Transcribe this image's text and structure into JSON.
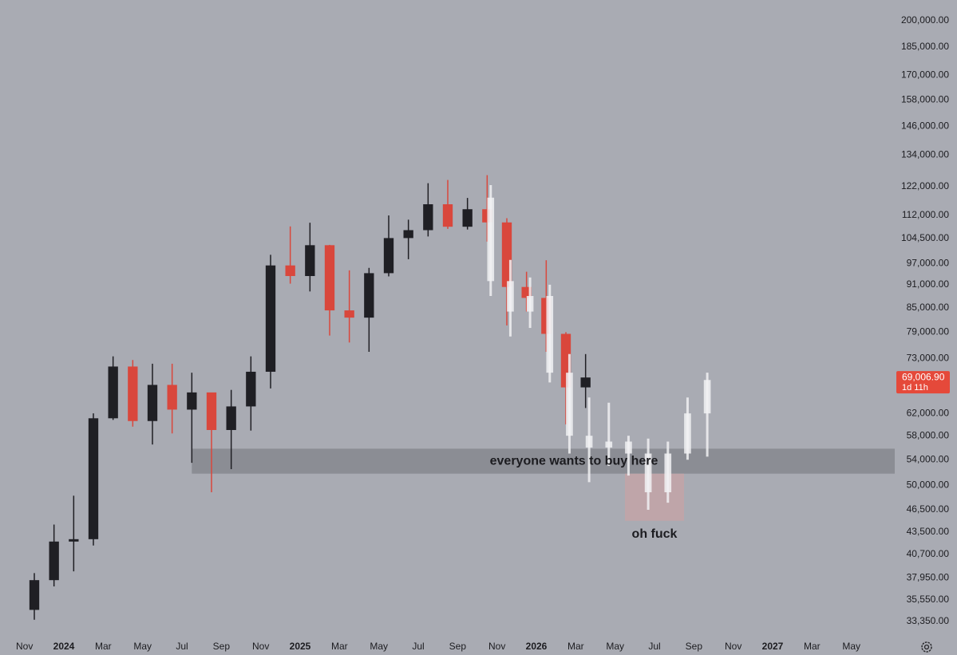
{
  "chart_data": {
    "type": "candlestick",
    "log_scale": true,
    "background": "#a9abb3",
    "ylim": [
      31700,
      212800
    ],
    "yticks": [
      {
        "value": 200000,
        "label": "200,000.00"
      },
      {
        "value": 185000,
        "label": "185,000.00"
      },
      {
        "value": 170000,
        "label": "170,000.00"
      },
      {
        "value": 158000,
        "label": "158,000.00"
      },
      {
        "value": 146000,
        "label": "146,000.00"
      },
      {
        "value": 134000,
        "label": "134,000.00"
      },
      {
        "value": 122000,
        "label": "122,000.00"
      },
      {
        "value": 112000,
        "label": "112,000.00"
      },
      {
        "value": 104500,
        "label": "104,500.00"
      },
      {
        "value": 97000,
        "label": "97,000.00"
      },
      {
        "value": 91000,
        "label": "91,000.00"
      },
      {
        "value": 85000,
        "label": "85,000.00"
      },
      {
        "value": 79000,
        "label": "79,000.00"
      },
      {
        "value": 73000,
        "label": "73,000.00"
      },
      {
        "value": 62000,
        "label": "62,000.00"
      },
      {
        "value": 58000,
        "label": "58,000.00"
      },
      {
        "value": 54000,
        "label": "54,000.00"
      },
      {
        "value": 50000,
        "label": "50,000.00"
      },
      {
        "value": 46500,
        "label": "46,500.00"
      },
      {
        "value": 43500,
        "label": "43,500.00"
      },
      {
        "value": 40700,
        "label": "40,700.00"
      },
      {
        "value": 37950,
        "label": "37,950.00"
      },
      {
        "value": 35550,
        "label": "35,550.00"
      },
      {
        "value": 33350,
        "label": "33,350.00"
      }
    ],
    "xlim": [
      "2023-10",
      "2027-07"
    ],
    "xticks": [
      {
        "value": "2023-11",
        "label": "Nov"
      },
      {
        "value": "2024-01",
        "label": "2024"
      },
      {
        "value": "2024-03",
        "label": "Mar"
      },
      {
        "value": "2024-05",
        "label": "May"
      },
      {
        "value": "2024-07",
        "label": "Jul"
      },
      {
        "value": "2024-09",
        "label": "Sep"
      },
      {
        "value": "2024-11",
        "label": "Nov"
      },
      {
        "value": "2025-01",
        "label": "2025"
      },
      {
        "value": "2025-03",
        "label": "Mar"
      },
      {
        "value": "2025-05",
        "label": "May"
      },
      {
        "value": "2025-07",
        "label": "Jul"
      },
      {
        "value": "2025-09",
        "label": "Sep"
      },
      {
        "value": "2025-11",
        "label": "Nov"
      },
      {
        "value": "2026-01",
        "label": "2026"
      },
      {
        "value": "2026-03",
        "label": "Mar"
      },
      {
        "value": "2026-05",
        "label": "May"
      },
      {
        "value": "2026-07",
        "label": "Jul"
      },
      {
        "value": "2026-09",
        "label": "Sep"
      },
      {
        "value": "2026-11",
        "label": "Nov"
      },
      {
        "value": "2027-01",
        "label": "2027"
      },
      {
        "value": "2027-03",
        "label": "Mar"
      },
      {
        "value": "2027-05",
        "label": "May"
      }
    ],
    "candles": {
      "up_color": "#1f1f24",
      "down_color": "#d9473c",
      "x": [
        "2023-11",
        "2023-12",
        "2024-01",
        "2024-02",
        "2024-03",
        "2024-04",
        "2024-05",
        "2024-06",
        "2024-07",
        "2024-08",
        "2024-09",
        "2024-10",
        "2024-11",
        "2024-12",
        "2025-01",
        "2025-02",
        "2025-03",
        "2025-04",
        "2025-05",
        "2025-06",
        "2025-07",
        "2025-08",
        "2025-09",
        "2025-10",
        "2025-11",
        "2025-12",
        "2026-01",
        "2026-02",
        "2026-03"
      ],
      "open": [
        34500,
        37700,
        42300,
        42600,
        61100,
        71300,
        60600,
        67500,
        62700,
        66000,
        59000,
        63300,
        70200,
        96400,
        93400,
        102400,
        84300,
        82500,
        94200,
        104600,
        107100,
        115700,
        108200,
        114000,
        109600,
        90400,
        87500,
        78600,
        67000
      ],
      "high": [
        38500,
        44500,
        48500,
        62000,
        73500,
        72700,
        71900,
        71900,
        70000,
        65600,
        66500,
        73500,
        99500,
        108300,
        109500,
        102500,
        95000,
        95700,
        111900,
        110500,
        123200,
        124400,
        117900,
        126200,
        111000,
        94600,
        97900,
        79000,
        74000
      ],
      "low": [
        33500,
        37000,
        38700,
        41800,
        60800,
        59600,
        56500,
        58400,
        53500,
        49000,
        52500,
        58900,
        66800,
        91300,
        89200,
        78200,
        76600,
        74500,
        93300,
        98200,
        105100,
        107500,
        107300,
        103500,
        80600,
        84000,
        74500,
        60000,
        63000
      ],
      "close": [
        37700,
        42300,
        42600,
        61100,
        71300,
        60600,
        67500,
        62700,
        66000,
        59000,
        63300,
        70200,
        96400,
        93400,
        102400,
        84300,
        82500,
        94200,
        104600,
        107100,
        115700,
        108200,
        114000,
        109600,
        90400,
        87500,
        78600,
        67000,
        69006.9
      ]
    },
    "projection": {
      "color": "#f1f1f3",
      "x": [
        "2025-10",
        "2025-11",
        "2025-12",
        "2026-01",
        "2026-02",
        "2026-03",
        "2026-04",
        "2026-05",
        "2026-06",
        "2026-07",
        "2026-08",
        "2026-09"
      ],
      "open": [
        118000,
        92000,
        84000,
        88000,
        70000,
        58000,
        56000,
        57000,
        55000,
        49000,
        55000,
        62000
      ],
      "high": [
        122500,
        98000,
        93000,
        91000,
        74000,
        65000,
        64000,
        58000,
        57500,
        57000,
        65000,
        70000
      ],
      "low": [
        88000,
        78000,
        80000,
        68000,
        55000,
        50500,
        53000,
        51500,
        46500,
        47500,
        54000,
        54500
      ],
      "close": [
        92000,
        84000,
        88000,
        70000,
        58000,
        56000,
        57000,
        55000,
        49000,
        55000,
        62000,
        68500
      ]
    },
    "last_price": {
      "value": 69006.9,
      "label": "69,006.90",
      "countdown": "1d 11h",
      "color": "#e5493a"
    },
    "annotations": [
      {
        "text": "everyone wants to buy here",
        "low": 51800,
        "high": 55800,
        "from": "2024-07",
        "color": "#8b8d94"
      },
      {
        "text": "oh fuck",
        "low": 45000,
        "high": 51800,
        "from": "2026-05",
        "to": "2026-08",
        "color": "#c7a3a6"
      }
    ]
  }
}
